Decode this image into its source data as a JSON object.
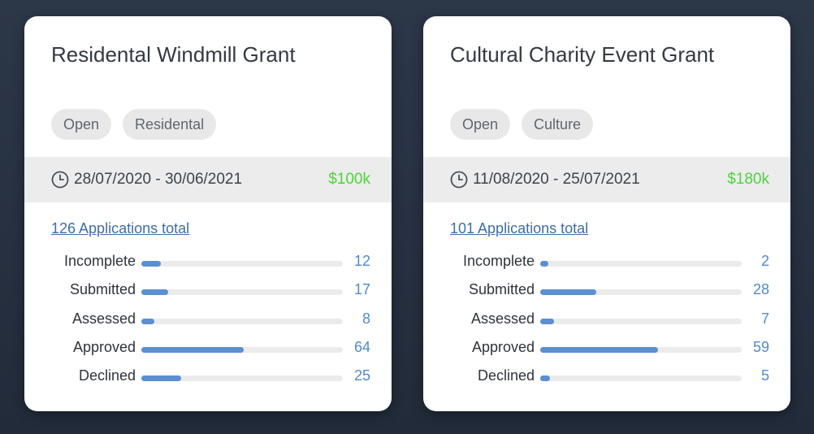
{
  "cards": [
    {
      "title": "Residental Windmill Grant",
      "tags": [
        "Open",
        "Residental"
      ],
      "date_range": "28/07/2020 - 30/06/2021",
      "amount": "$100k",
      "total_link": "126 Applications total",
      "total": 126,
      "stats": [
        {
          "label": "Incomplete",
          "value": "12",
          "fraction": 0.095
        },
        {
          "label": "Submitted",
          "value": "17",
          "fraction": 0.135
        },
        {
          "label": "Assessed",
          "value": "8",
          "fraction": 0.063
        },
        {
          "label": "Approved",
          "value": "64",
          "fraction": 0.508
        },
        {
          "label": "Declined",
          "value": "25",
          "fraction": 0.198
        }
      ]
    },
    {
      "title": "Cultural Charity Event Grant",
      "tags": [
        "Open",
        "Culture"
      ],
      "date_range": "11/08/2020 - 25/07/2021",
      "amount": "$180k",
      "total_link": "101 Applications total",
      "total": 101,
      "stats": [
        {
          "label": "Incomplete",
          "value": "2",
          "fraction": 0.02
        },
        {
          "label": "Submitted",
          "value": "28",
          "fraction": 0.277
        },
        {
          "label": "Assessed",
          "value": "7",
          "fraction": 0.069
        },
        {
          "label": "Approved",
          "value": "59",
          "fraction": 0.584
        },
        {
          "label": "Declined",
          "value": "5",
          "fraction": 0.05
        }
      ]
    }
  ],
  "colors": {
    "amount": "#4cd43a",
    "bar": "#5b8fd1",
    "link": "#3e6da6",
    "value": "#4f8bd0"
  },
  "icons": {
    "date": "clock-icon"
  }
}
